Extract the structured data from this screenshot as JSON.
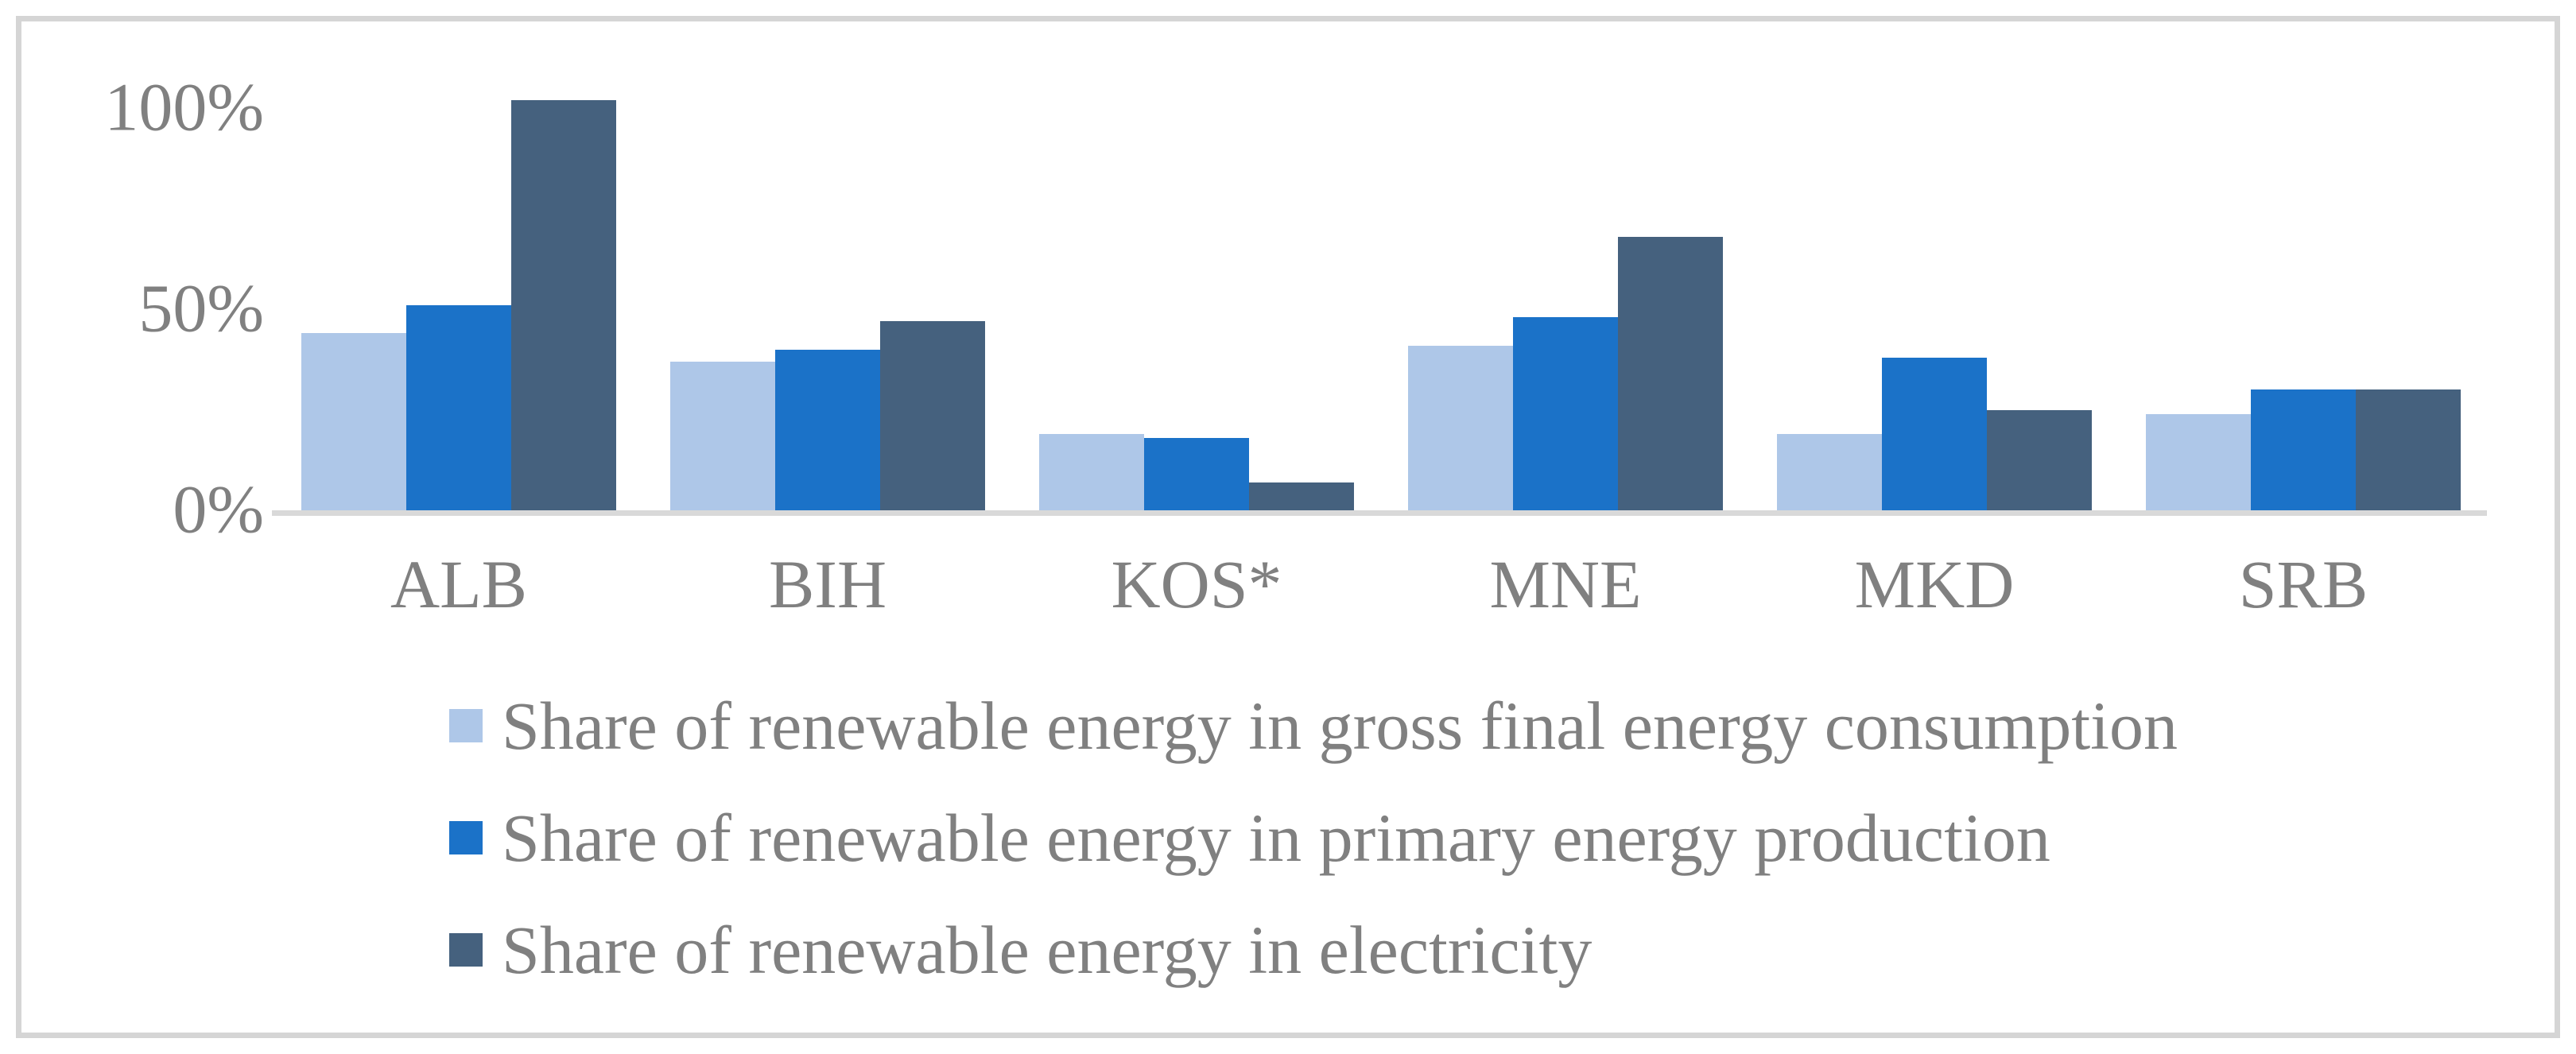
{
  "figure": {
    "background": "#FFFFFF",
    "border_color": "#D5D5D5",
    "text_color": "#808080",
    "axis_line_color": "#D9D9D9"
  },
  "chart_data": {
    "type": "bar",
    "title": "",
    "xlabel": "",
    "ylabel": "",
    "grid": false,
    "legend_position": "bottom-left",
    "ylim": [
      0,
      110
    ],
    "categories": [
      "ALB",
      "BIH",
      "KOS*",
      "MNE",
      "MKD",
      "SRB"
    ],
    "series": [
      {
        "name": "Share of renewable energy in gross final energy consumption",
        "color": "#AEC7E8",
        "values": [
          44,
          37,
          19,
          41,
          19,
          24
        ]
      },
      {
        "name": "Share of renewable energy in primary energy production",
        "color": "#1B72C8",
        "values": [
          51,
          40,
          18,
          48,
          38,
          30
        ]
      },
      {
        "name": "Share of renewable energy in electricity",
        "color": "#45617E",
        "values": [
          102,
          47,
          7,
          68,
          25,
          30
        ]
      }
    ],
    "yticks": [
      {
        "label": "0%",
        "value": 0
      },
      {
        "label": "50%",
        "value": 50
      },
      {
        "label": "100%",
        "value": 100
      }
    ]
  }
}
